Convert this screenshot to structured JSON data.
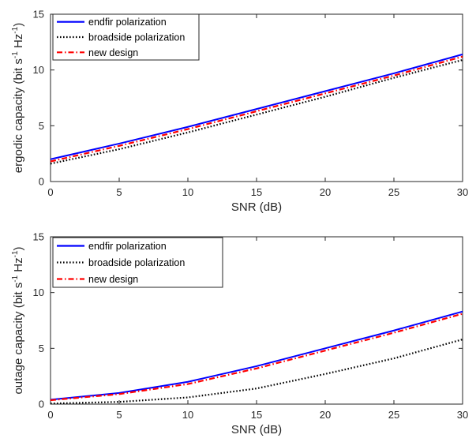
{
  "chart_data": [
    {
      "type": "line",
      "xlabel": "SNR (dB)",
      "ylabel": "ergodic capacity",
      "ylabel_unit_prefix": "(bit s",
      "ylabel_unit_exp1": "-1",
      "ylabel_unit_mid": " Hz",
      "ylabel_unit_exp2": "-1",
      "ylabel_unit_suffix": ")",
      "xlim": [
        0,
        30
      ],
      "ylim": [
        0,
        15
      ],
      "xticks": [
        0,
        5,
        10,
        15,
        20,
        25,
        30
      ],
      "yticks": [
        0,
        5,
        10,
        15
      ],
      "grid": false,
      "legend": "top-left",
      "x": [
        0,
        5,
        10,
        15,
        20,
        25,
        30
      ],
      "series": [
        {
          "name": "endfir polarization",
          "color": "#0000ff",
          "style": "solid",
          "values": [
            2.0,
            3.4,
            4.9,
            6.5,
            8.1,
            9.7,
            11.4
          ]
        },
        {
          "name": "broadside polarization",
          "color": "#000000",
          "style": "dotted",
          "values": [
            1.6,
            2.9,
            4.4,
            6.0,
            7.6,
            9.3,
            10.9
          ]
        },
        {
          "name": "new design",
          "color": "#ff0000",
          "style": "dashdot",
          "values": [
            1.8,
            3.2,
            4.7,
            6.3,
            7.9,
            9.5,
            11.2
          ]
        }
      ]
    },
    {
      "type": "line",
      "xlabel": "SNR (dB)",
      "ylabel": "outage capacity",
      "ylabel_unit_prefix": "(bit s",
      "ylabel_unit_exp1": "-1",
      "ylabel_unit_mid": " Hz",
      "ylabel_unit_exp2": "-1",
      "ylabel_unit_suffix": ")",
      "xlim": [
        0,
        30
      ],
      "ylim": [
        0,
        15
      ],
      "xticks": [
        0,
        5,
        10,
        15,
        20,
        25,
        30
      ],
      "yticks": [
        0,
        5,
        10,
        15
      ],
      "grid": false,
      "legend": "top-left",
      "x": [
        0,
        5,
        10,
        15,
        20,
        25,
        30
      ],
      "series": [
        {
          "name": "endfir polarization",
          "color": "#0000ff",
          "style": "solid",
          "values": [
            0.4,
            1.0,
            2.0,
            3.4,
            5.0,
            6.6,
            8.3
          ]
        },
        {
          "name": "broadside polarization",
          "color": "#000000",
          "style": "dotted",
          "values": [
            0.05,
            0.2,
            0.6,
            1.4,
            2.7,
            4.1,
            5.8
          ]
        },
        {
          "name": "new design",
          "color": "#ff0000",
          "style": "dashdot",
          "values": [
            0.35,
            0.9,
            1.8,
            3.2,
            4.8,
            6.4,
            8.1
          ]
        }
      ]
    }
  ]
}
